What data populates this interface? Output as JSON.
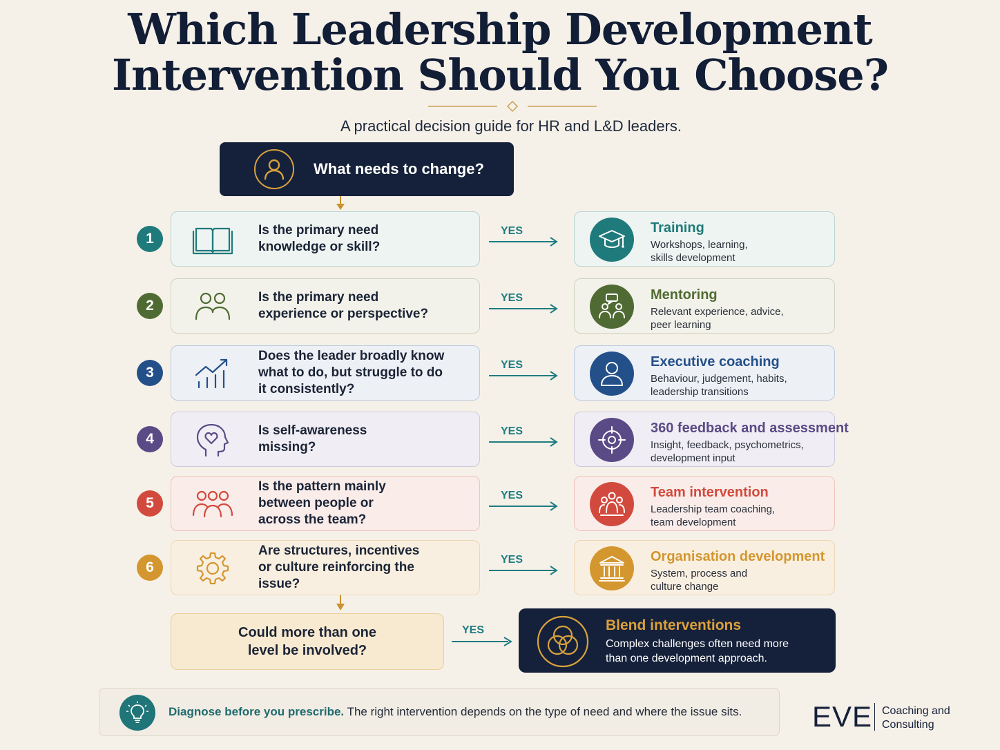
{
  "header": {
    "title_line1": "Which Leadership Development",
    "title_line2": "Intervention Should You Choose?",
    "subtitle": "A practical decision guide for HR and L&D leaders."
  },
  "start": {
    "label": "What needs to change?",
    "icon": "person-icon"
  },
  "yes_label": "YES",
  "steps": [
    {
      "number": "1",
      "question": "Is the primary need knowledge or skill?",
      "question_icon": "book-icon",
      "color": "#1f7a7c",
      "answer_title": "Training",
      "answer_desc": "Workshops, learning, skills development",
      "answer_icon": "graduation-cap-icon"
    },
    {
      "number": "2",
      "question": "Is the primary need experience or perspective?",
      "question_icon": "two-people-icon",
      "color": "#4f6b33",
      "answer_title": "Mentoring",
      "answer_desc": "Relevant experience, advice, peer learning",
      "answer_icon": "conversation-people-icon"
    },
    {
      "number": "3",
      "question": "Does the leader broadly know what to do, but struggle to do it consistently?",
      "question_icon": "growth-chart-icon",
      "color": "#24508a",
      "answer_title": "Executive coaching",
      "answer_desc": "Behaviour, judgement, habits, leadership transitions",
      "answer_icon": "person-icon"
    },
    {
      "number": "4",
      "question": "Is self-awareness missing?",
      "question_icon": "head-heart-icon",
      "color": "#5a4a86",
      "answer_title": "360 feedback and assessment",
      "answer_desc": "Insight, feedback, psychometrics, development input",
      "answer_icon": "target-icon"
    },
    {
      "number": "5",
      "question": "Is the pattern mainly between people or across the team?",
      "question_icon": "group-icon",
      "color": "#d24a3d",
      "answer_title": "Team intervention",
      "answer_desc": "Leadership team coaching, team development",
      "answer_icon": "team-icon"
    },
    {
      "number": "6",
      "question": "Are structures, incentives or culture reinforcing the issue?",
      "question_icon": "gear-icon",
      "color": "#d4962f",
      "answer_title": "Organisation development",
      "answer_desc": "System, process and culture change",
      "answer_icon": "institution-icon"
    }
  ],
  "final": {
    "question": "Could more than one level be involved?",
    "answer_title": "Blend interventions",
    "answer_desc": "Complex challenges often need more than one development approach.",
    "answer_icon": "overlapping-circles-icon"
  },
  "footer": {
    "strong": "Diagnose before you prescribe.",
    "text": "The right intervention depends on the type of need and where the issue sits.",
    "icon": "lightbulb-icon"
  },
  "brand": {
    "name": "EVE",
    "sub": "Coaching and Consulting"
  }
}
